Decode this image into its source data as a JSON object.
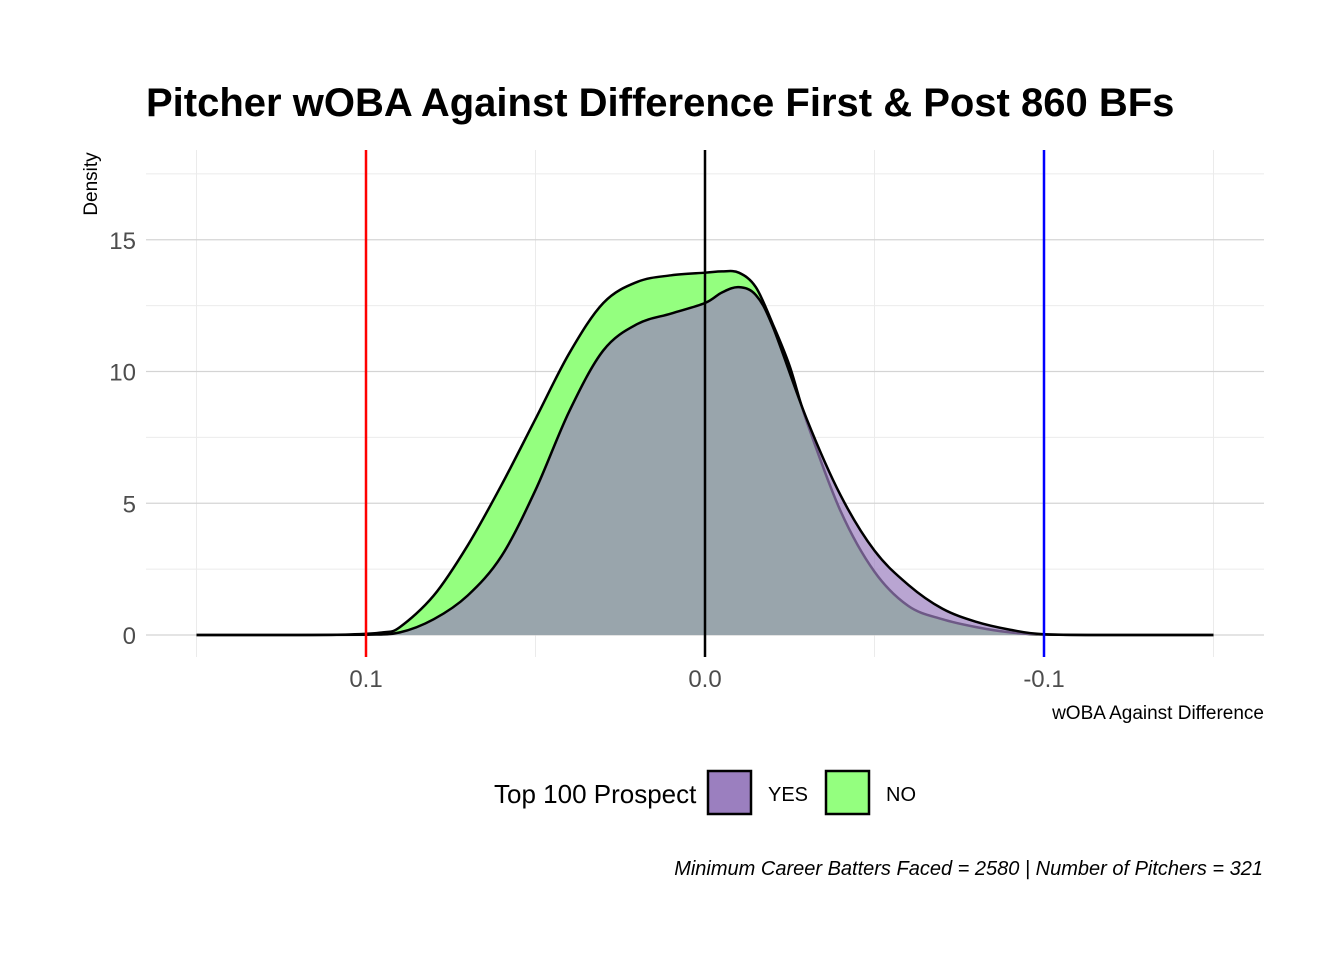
{
  "chart_data": {
    "type": "area",
    "title": "Pitcher wOBA Against Difference First & Post 860 BFs",
    "xlabel": "wOBA Against Difference",
    "ylabel": "Density",
    "x_reversed": true,
    "xlim": [
      0.15,
      -0.15
    ],
    "ylim": [
      0,
      18
    ],
    "x_ticks": [
      0.1,
      0.0,
      -0.1
    ],
    "x_tick_labels": [
      "0.1",
      "0.0",
      "-0.1"
    ],
    "y_ticks": [
      0,
      5,
      10,
      15
    ],
    "y_tick_labels": [
      "0",
      "5",
      "10",
      "15"
    ],
    "grid": true,
    "reference_lines": [
      {
        "x": 0.1,
        "color": "#ff0000"
      },
      {
        "x": 0.0,
        "color": "#000000"
      },
      {
        "x": -0.1,
        "color": "#0000ff"
      }
    ],
    "legend": {
      "title": "Top 100 Prospect",
      "position": "bottom",
      "entries": [
        {
          "label": "YES",
          "color": "#9b7fbf"
        },
        {
          "label": "NO",
          "color": "#94ff7f"
        }
      ]
    },
    "series": [
      {
        "name": "NO",
        "color": "#94ff7f",
        "x": [
          0.15,
          0.12,
          0.105,
          0.095,
          0.09,
          0.08,
          0.07,
          0.06,
          0.05,
          0.04,
          0.03,
          0.02,
          0.01,
          0.0,
          -0.005,
          -0.01,
          -0.015,
          -0.02,
          -0.025,
          -0.03,
          -0.04,
          -0.05,
          -0.06,
          -0.07,
          -0.08,
          -0.09,
          -0.1,
          -0.12,
          -0.15
        ],
        "y": [
          0,
          0,
          0.02,
          0.1,
          0.3,
          1.5,
          3.4,
          5.7,
          8.2,
          10.7,
          12.6,
          13.4,
          13.65,
          13.75,
          13.8,
          13.75,
          13.2,
          11.8,
          10.2,
          8.1,
          4.7,
          2.4,
          1.1,
          0.6,
          0.3,
          0.1,
          0.02,
          0,
          0
        ]
      },
      {
        "name": "YES",
        "color": "#9b7fbf",
        "x": [
          0.15,
          0.12,
          0.1,
          0.09,
          0.08,
          0.07,
          0.06,
          0.05,
          0.04,
          0.03,
          0.02,
          0.01,
          0.0,
          -0.005,
          -0.01,
          -0.015,
          -0.02,
          -0.03,
          -0.04,
          -0.05,
          -0.06,
          -0.07,
          -0.08,
          -0.09,
          -0.1,
          -0.12,
          -0.15
        ],
        "y": [
          0,
          0,
          0.01,
          0.1,
          0.6,
          1.5,
          3.0,
          5.5,
          8.5,
          10.8,
          11.8,
          12.2,
          12.6,
          13.0,
          13.2,
          12.9,
          11.7,
          8.2,
          5.3,
          3.2,
          1.9,
          1.0,
          0.5,
          0.2,
          0.03,
          0,
          0
        ]
      }
    ],
    "caption": "Minimum Career Batters Faced = 2580 | Number of Pitchers = 321"
  }
}
